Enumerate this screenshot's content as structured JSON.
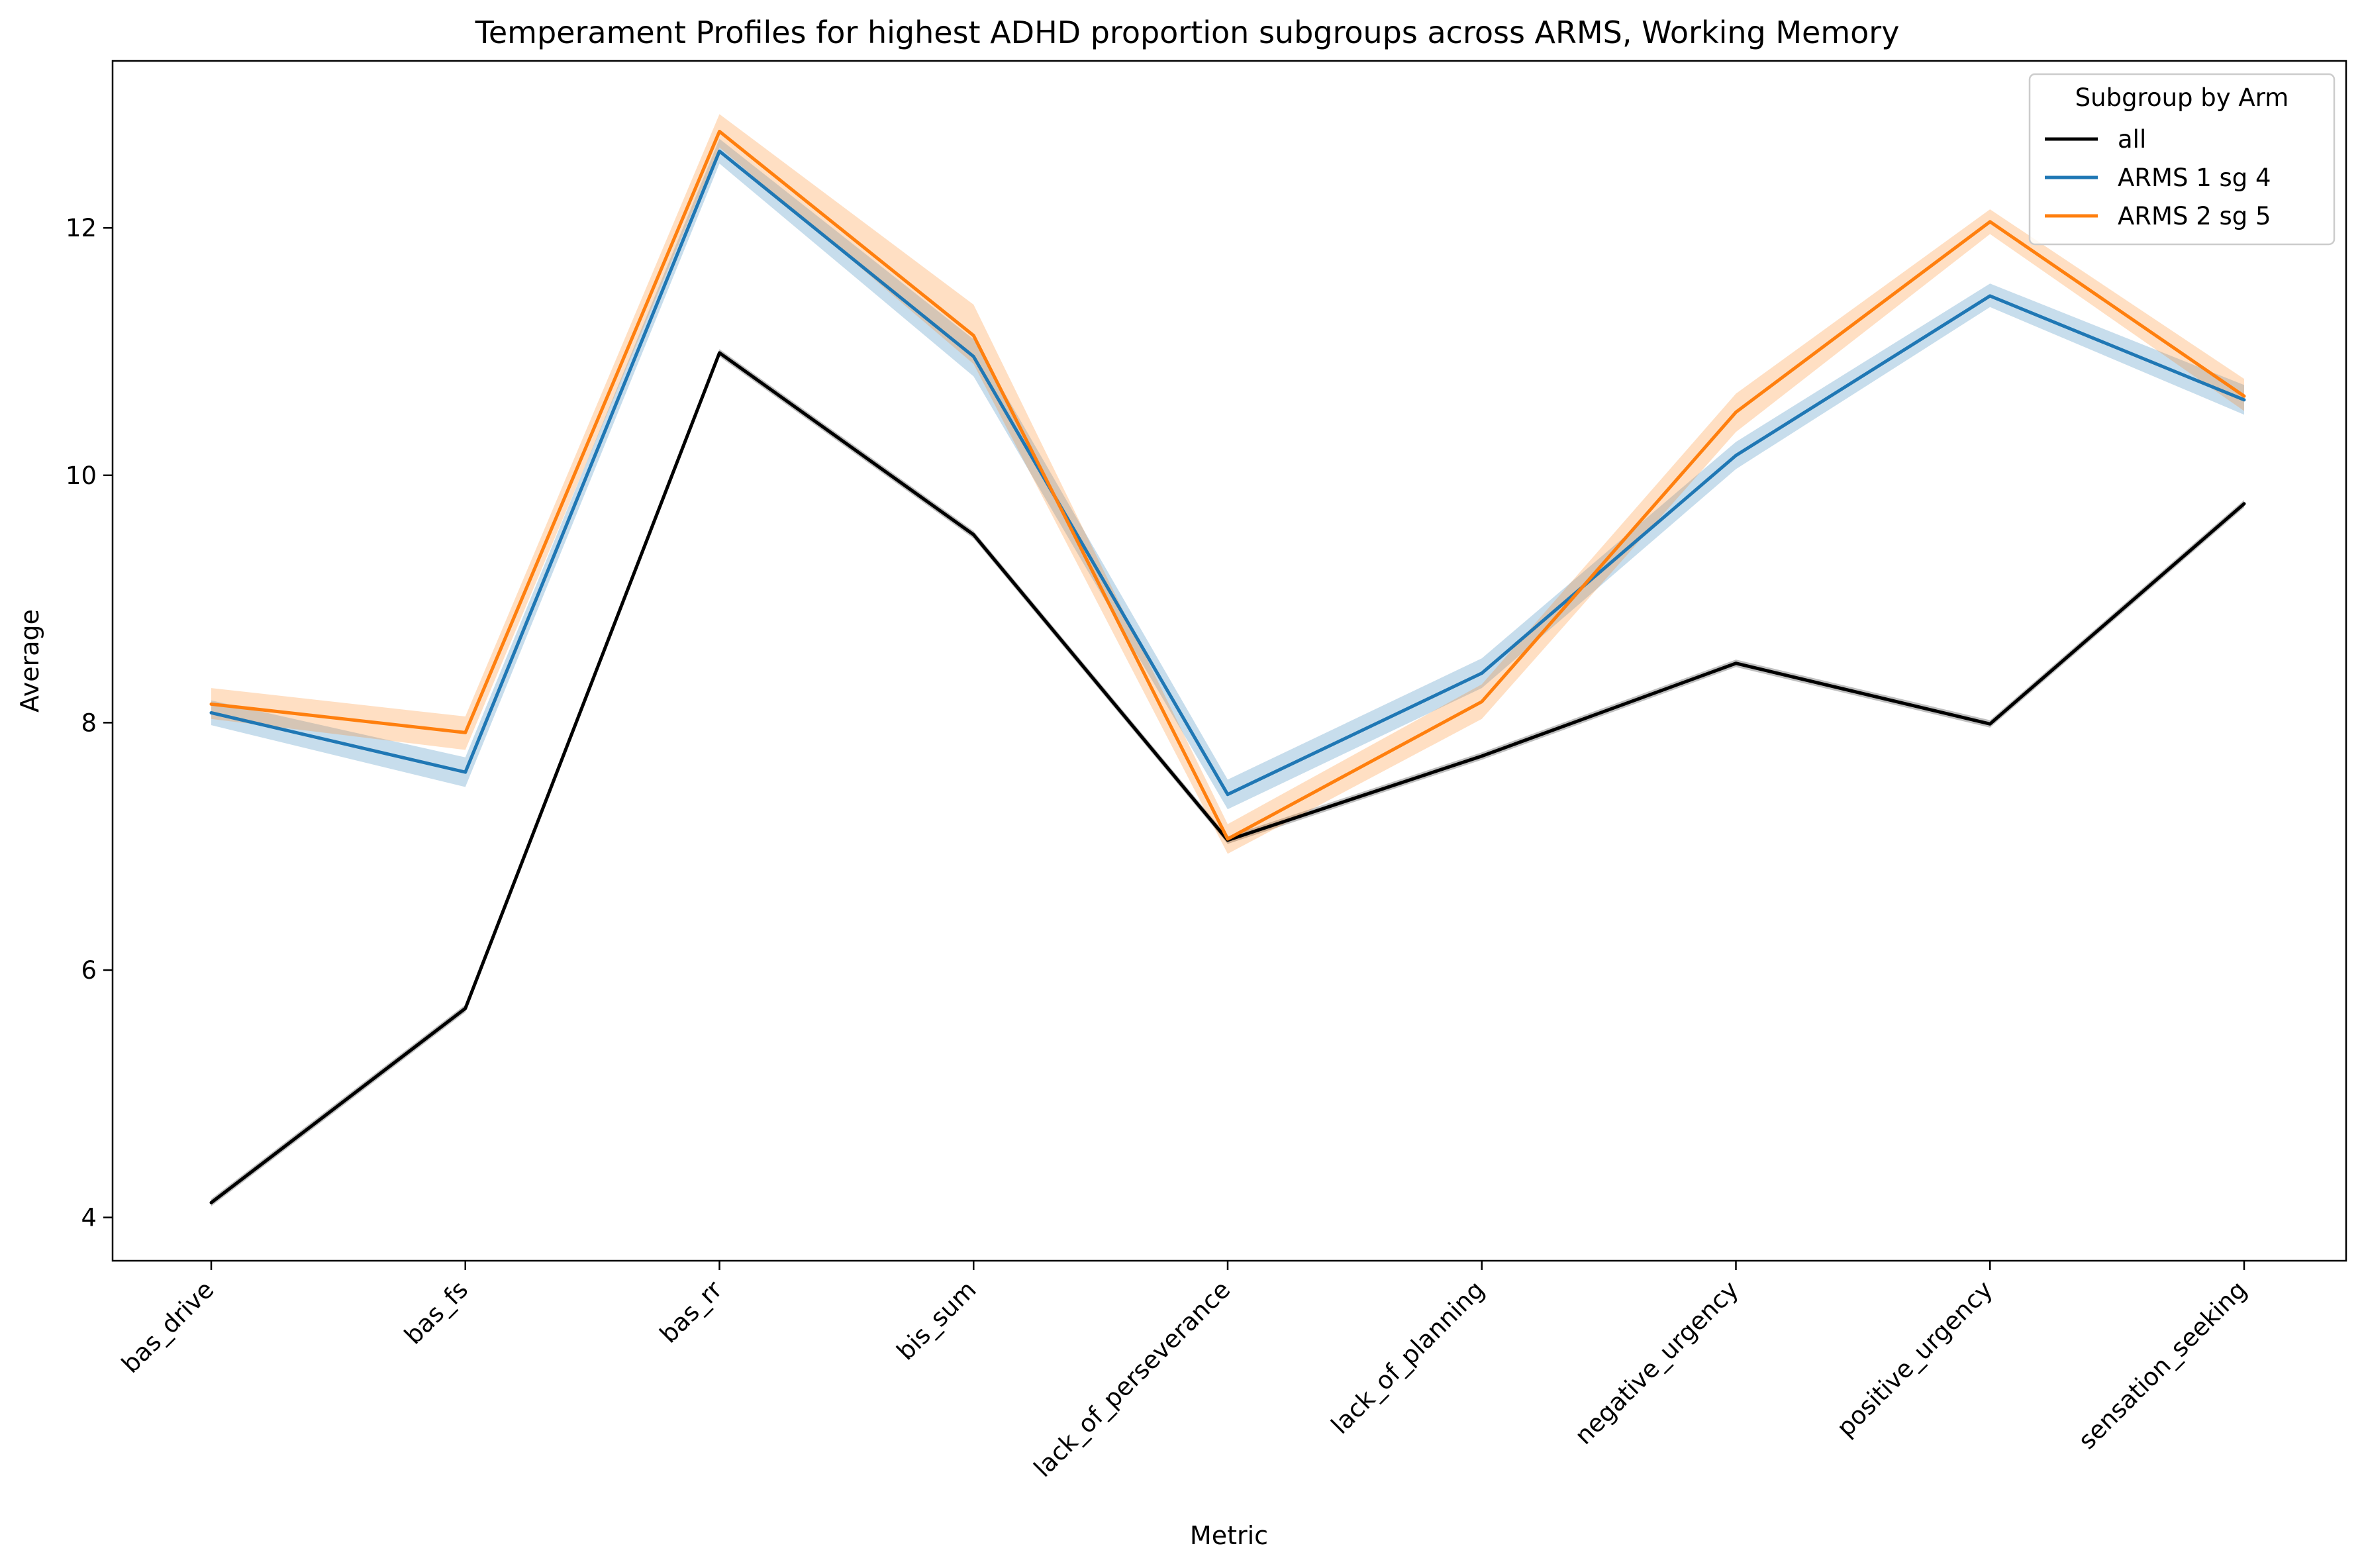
{
  "chart_data": {
    "type": "line",
    "title": "Temperament Profiles for highest ADHD proportion subgroups across ARMS, Working Memory",
    "xlabel": "Metric",
    "ylabel": "Average",
    "categories": [
      "bas_drive",
      "bas_fs",
      "bas_rr",
      "bis_sum",
      "lack_of_perseverance",
      "lack_of_planning",
      "negative_urgency",
      "positive_urgency",
      "sensation_seeking"
    ],
    "y_ticks": [
      "4",
      "6",
      "8",
      "10",
      "12"
    ],
    "ylim": [
      3.65,
      13.35
    ],
    "grid": false,
    "legend": {
      "title": "Subgroup by Arm",
      "placement": "top-right"
    },
    "series": [
      {
        "name": "all",
        "color": "#000000",
        "values": [
          4.12,
          5.69,
          10.99,
          9.52,
          7.05,
          7.73,
          8.48,
          7.99,
          9.77
        ],
        "ci_lower": [
          4.09,
          5.66,
          10.96,
          9.49,
          7.02,
          7.7,
          8.45,
          7.96,
          9.74
        ],
        "ci_upper": [
          4.15,
          5.72,
          11.02,
          9.55,
          7.08,
          7.76,
          8.51,
          8.02,
          9.8
        ]
      },
      {
        "name": "ARMS 1 sg 4",
        "color": "#1f77b4",
        "values": [
          8.08,
          7.6,
          12.62,
          10.96,
          7.42,
          8.4,
          10.16,
          11.45,
          10.61
        ],
        "ci_lower": [
          7.98,
          7.48,
          12.52,
          10.8,
          7.3,
          8.28,
          10.05,
          11.36,
          10.49
        ],
        "ci_upper": [
          8.18,
          7.72,
          12.72,
          11.1,
          7.54,
          8.52,
          10.27,
          11.55,
          10.73
        ]
      },
      {
        "name": "ARMS 2 sg 5",
        "color": "#ff7f0e",
        "values": [
          8.15,
          7.92,
          12.78,
          11.13,
          7.06,
          8.17,
          10.51,
          12.05,
          10.64
        ],
        "ci_lower": [
          8.03,
          7.78,
          12.65,
          10.9,
          6.94,
          8.03,
          10.35,
          11.95,
          10.52
        ],
        "ci_upper": [
          8.28,
          8.05,
          12.92,
          11.38,
          7.18,
          8.31,
          10.66,
          12.15,
          10.78
        ]
      }
    ]
  }
}
